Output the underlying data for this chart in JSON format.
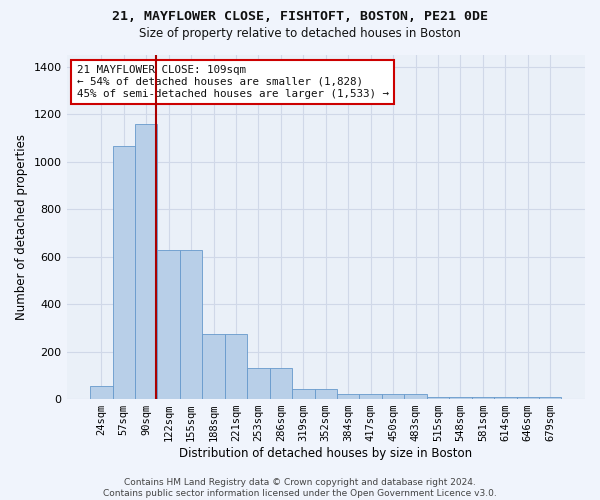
{
  "title_line1": "21, MAYFLOWER CLOSE, FISHTOFT, BOSTON, PE21 0DE",
  "title_line2": "Size of property relative to detached houses in Boston",
  "xlabel": "Distribution of detached houses by size in Boston",
  "ylabel": "Number of detached properties",
  "bar_labels": [
    "24sqm",
    "57sqm",
    "90sqm",
    "122sqm",
    "155sqm",
    "188sqm",
    "221sqm",
    "253sqm",
    "286sqm",
    "319sqm",
    "352sqm",
    "384sqm",
    "417sqm",
    "450sqm",
    "483sqm",
    "515sqm",
    "548sqm",
    "581sqm",
    "614sqm",
    "646sqm",
    "679sqm"
  ],
  "bar_heights": [
    57,
    1068,
    1160,
    630,
    630,
    275,
    275,
    130,
    130,
    43,
    43,
    20,
    20,
    20,
    20,
    8,
    8,
    8,
    8,
    8,
    8
  ],
  "bar_color": "#b8cfe8",
  "bar_edge_color": "#6699cc",
  "grid_color": "#d0d8e8",
  "background_color": "#eaf0f8",
  "fig_background_color": "#f0f4fc",
  "vline_pos": 2.42,
  "vline_color": "#aa0000",
  "annotation_text": "21 MAYFLOWER CLOSE: 109sqm\n← 54% of detached houses are smaller (1,828)\n45% of semi-detached houses are larger (1,533) →",
  "annotation_box_color": "#ffffff",
  "annotation_box_edge_color": "#cc0000",
  "ylim": [
    0,
    1450
  ],
  "yticks": [
    0,
    200,
    400,
    600,
    800,
    1000,
    1200,
    1400
  ],
  "footer_text": "Contains HM Land Registry data © Crown copyright and database right 2024.\nContains public sector information licensed under the Open Government Licence v3.0."
}
